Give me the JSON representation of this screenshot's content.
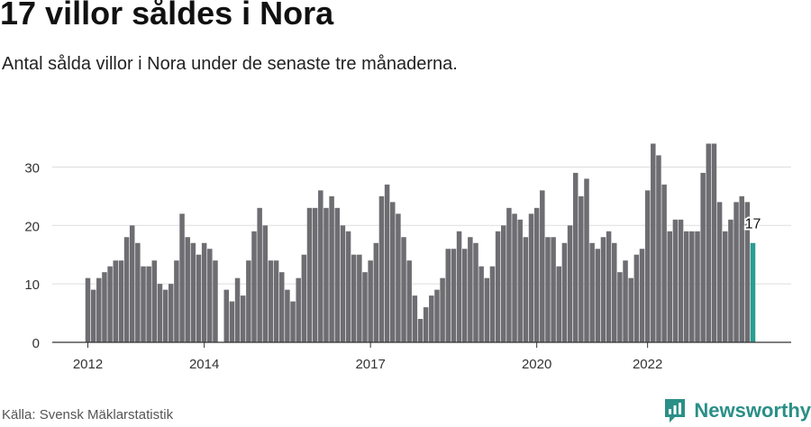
{
  "header": {
    "title": "17 villor såldes i Nora",
    "subtitle": "Antal sålda villor i Nora under de senaste tre månaderna."
  },
  "footer": {
    "source": "Källa: Svensk Mäklarstatistik",
    "brand": "Newsworthy"
  },
  "colors": {
    "bar": "#6d6d72",
    "highlight": "#2a9d90",
    "grid": "#dddddd",
    "axis": "#333333",
    "brand": "#2a8f87"
  },
  "chart_data": {
    "type": "bar",
    "title": "17 villor såldes i Nora",
    "xlabel": "",
    "ylabel": "",
    "ylim": [
      0,
      37
    ],
    "yticks": [
      0,
      10,
      20,
      30
    ],
    "grid": true,
    "x_tick_labels": [
      {
        "label": "2012",
        "index": 0
      },
      {
        "label": "2014",
        "index": 21
      },
      {
        "label": "2017",
        "index": 51
      },
      {
        "label": "2020",
        "index": 81
      },
      {
        "label": "2022",
        "index": 101
      }
    ],
    "values": [
      11,
      9,
      11,
      12,
      13,
      14,
      14,
      18,
      20,
      17,
      13,
      13,
      14,
      10,
      9,
      10,
      14,
      22,
      18,
      17,
      15,
      17,
      16,
      14,
      0,
      9,
      7,
      11,
      8,
      14,
      19,
      23,
      20,
      14,
      14,
      12,
      9,
      7,
      11,
      15,
      23,
      23,
      26,
      23,
      25,
      23,
      20,
      19,
      15,
      15,
      12,
      14,
      17,
      25,
      27,
      24,
      22,
      18,
      14,
      8,
      4,
      6,
      8,
      9,
      11,
      16,
      16,
      19,
      16,
      18,
      17,
      13,
      11,
      13,
      19,
      20,
      23,
      22,
      21,
      18,
      22,
      23,
      26,
      18,
      18,
      13,
      17,
      20,
      29,
      25,
      28,
      17,
      16,
      18,
      19,
      17,
      12,
      14,
      11,
      15,
      16,
      26,
      34,
      32,
      27,
      19,
      21,
      21,
      19,
      19,
      19,
      29,
      34,
      34,
      24,
      19,
      21,
      24,
      25,
      24,
      17
    ],
    "highlight_index": 120,
    "highlight_label": "17"
  }
}
